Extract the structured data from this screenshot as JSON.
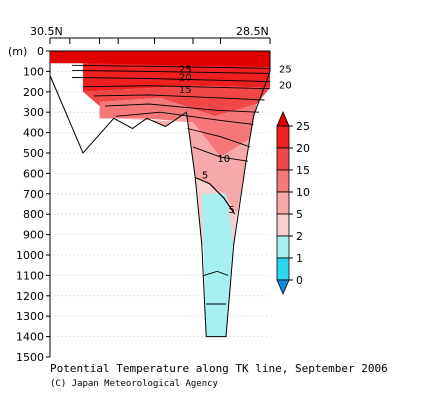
{
  "chart_data": {
    "type": "heatmap",
    "title": "Potential Temperature along TK line, September 2006",
    "credit": "(C) Japan Meteorological Agency",
    "ylabel": "(m)",
    "x_labels": {
      "left": "30.5N",
      "right": "28.5N"
    },
    "y_ticks": [
      0,
      100,
      200,
      300,
      400,
      500,
      600,
      700,
      800,
      900,
      1000,
      1100,
      1200,
      1300,
      1400,
      1500
    ],
    "ylim": [
      0,
      1500
    ],
    "grid": true,
    "color_bar": {
      "placement": "right",
      "levels": [
        "25",
        "20",
        "15",
        "10",
        "5",
        "2",
        "1",
        "0"
      ],
      "colors": [
        "#e00000",
        "#ee2020",
        "#f04848",
        "#f57878",
        "#f7a8a8",
        "#f8cfcf",
        "#a8f0f0",
        "#2ad8f0",
        "#18b0e0",
        "#1888d8"
      ]
    },
    "contour_labels": [
      {
        "text": "25",
        "x": 29.27,
        "depth": 105
      },
      {
        "text": "25",
        "x": 28.36,
        "depth": 105
      },
      {
        "text": "20",
        "x": 29.27,
        "depth": 145
      },
      {
        "text": "20",
        "x": 28.36,
        "depth": 185
      },
      {
        "text": "15",
        "x": 29.27,
        "depth": 205
      },
      {
        "text": "10",
        "x": 28.92,
        "depth": 545
      },
      {
        "text": "5",
        "x": 29.09,
        "depth": 625
      },
      {
        "text": "5",
        "x": 28.85,
        "depth": 795
      }
    ]
  }
}
